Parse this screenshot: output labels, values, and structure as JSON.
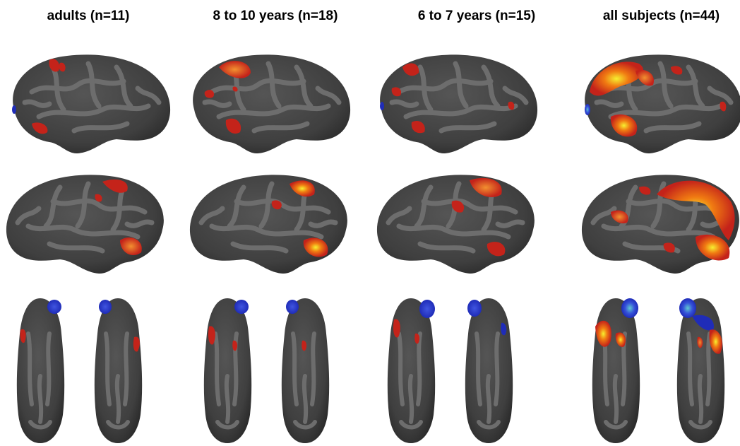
{
  "columns": [
    {
      "title": "adults (n=11)"
    },
    {
      "title": "8 to 10 years (n=18)"
    },
    {
      "title": "6 to 7 years (n=15)"
    },
    {
      "title": "all subjects (n=44)"
    }
  ],
  "views": [
    "left-lateral",
    "right-lateral",
    "ventral-pair"
  ],
  "colors": {
    "cortex_dark": "#3d3d3d",
    "cortex_light": "#6e6e6e",
    "activation_low": "#c4231a",
    "activation_mid": "#f07a12",
    "activation_high": "#f6f030",
    "deactivation": "#2434c8",
    "deactivation_high": "#5fc8d0"
  }
}
